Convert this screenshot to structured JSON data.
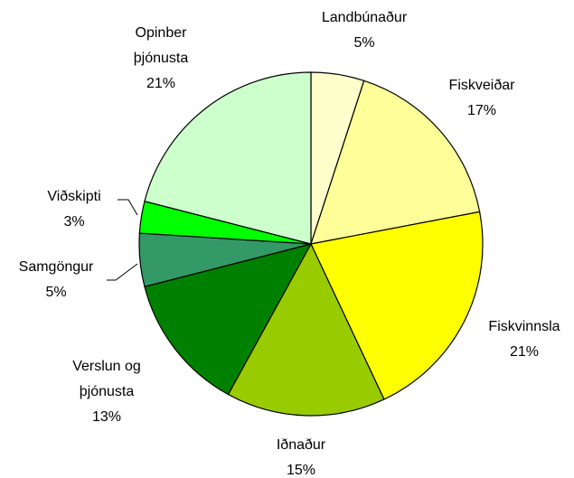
{
  "chart_data": {
    "type": "pie",
    "categories": [
      "Landbúnaður",
      "Fiskveiðar",
      "Fiskvinnsla",
      "Iðnaður",
      "Verslun og\nþjónusta",
      "Samgöngur",
      "Viðskipti",
      "Opinber\nþjónusta"
    ],
    "values": [
      5,
      17,
      21,
      15,
      13,
      5,
      3,
      21
    ],
    "value_labels": [
      "5%",
      "17%",
      "21%",
      "15%",
      "13%",
      "5%",
      "3%",
      "21%"
    ],
    "colors": [
      "#ffffcc",
      "#ffff99",
      "#ffff00",
      "#99cc00",
      "#008000",
      "#339966",
      "#00ff00",
      "#ccffcc"
    ]
  }
}
